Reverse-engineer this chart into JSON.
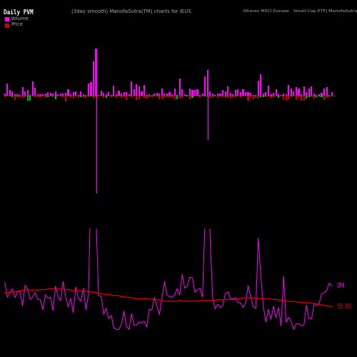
{
  "title_left": "Daily PVM",
  "title_center": "(3day smooth) ManofaSutra(TM) charts for IEUS",
  "title_right": "iShares MSCI Europe   Small-Cap ETF| ManofaSutra.co",
  "legend_volume_label": "Volume",
  "legend_price_label": "Price",
  "bg_color": "#000000",
  "bar_pos_color": "#ff00ff",
  "bar_neg_color": "#cc0000",
  "bar_green_color": "#00bb00",
  "line_pvm_color": "#ff00ff",
  "line_price_color": "#dd0000",
  "label_0m": "0M",
  "label_price_val": "55.80",
  "label_pvm_color": "#ff00ff",
  "label_price_color": "#dd0000",
  "text_color_title": "#ffffff",
  "text_color_gray": "#aaaaaa",
  "n_bars": 130,
  "figsize": [
    5.0,
    5.0
  ],
  "dpi": 100
}
